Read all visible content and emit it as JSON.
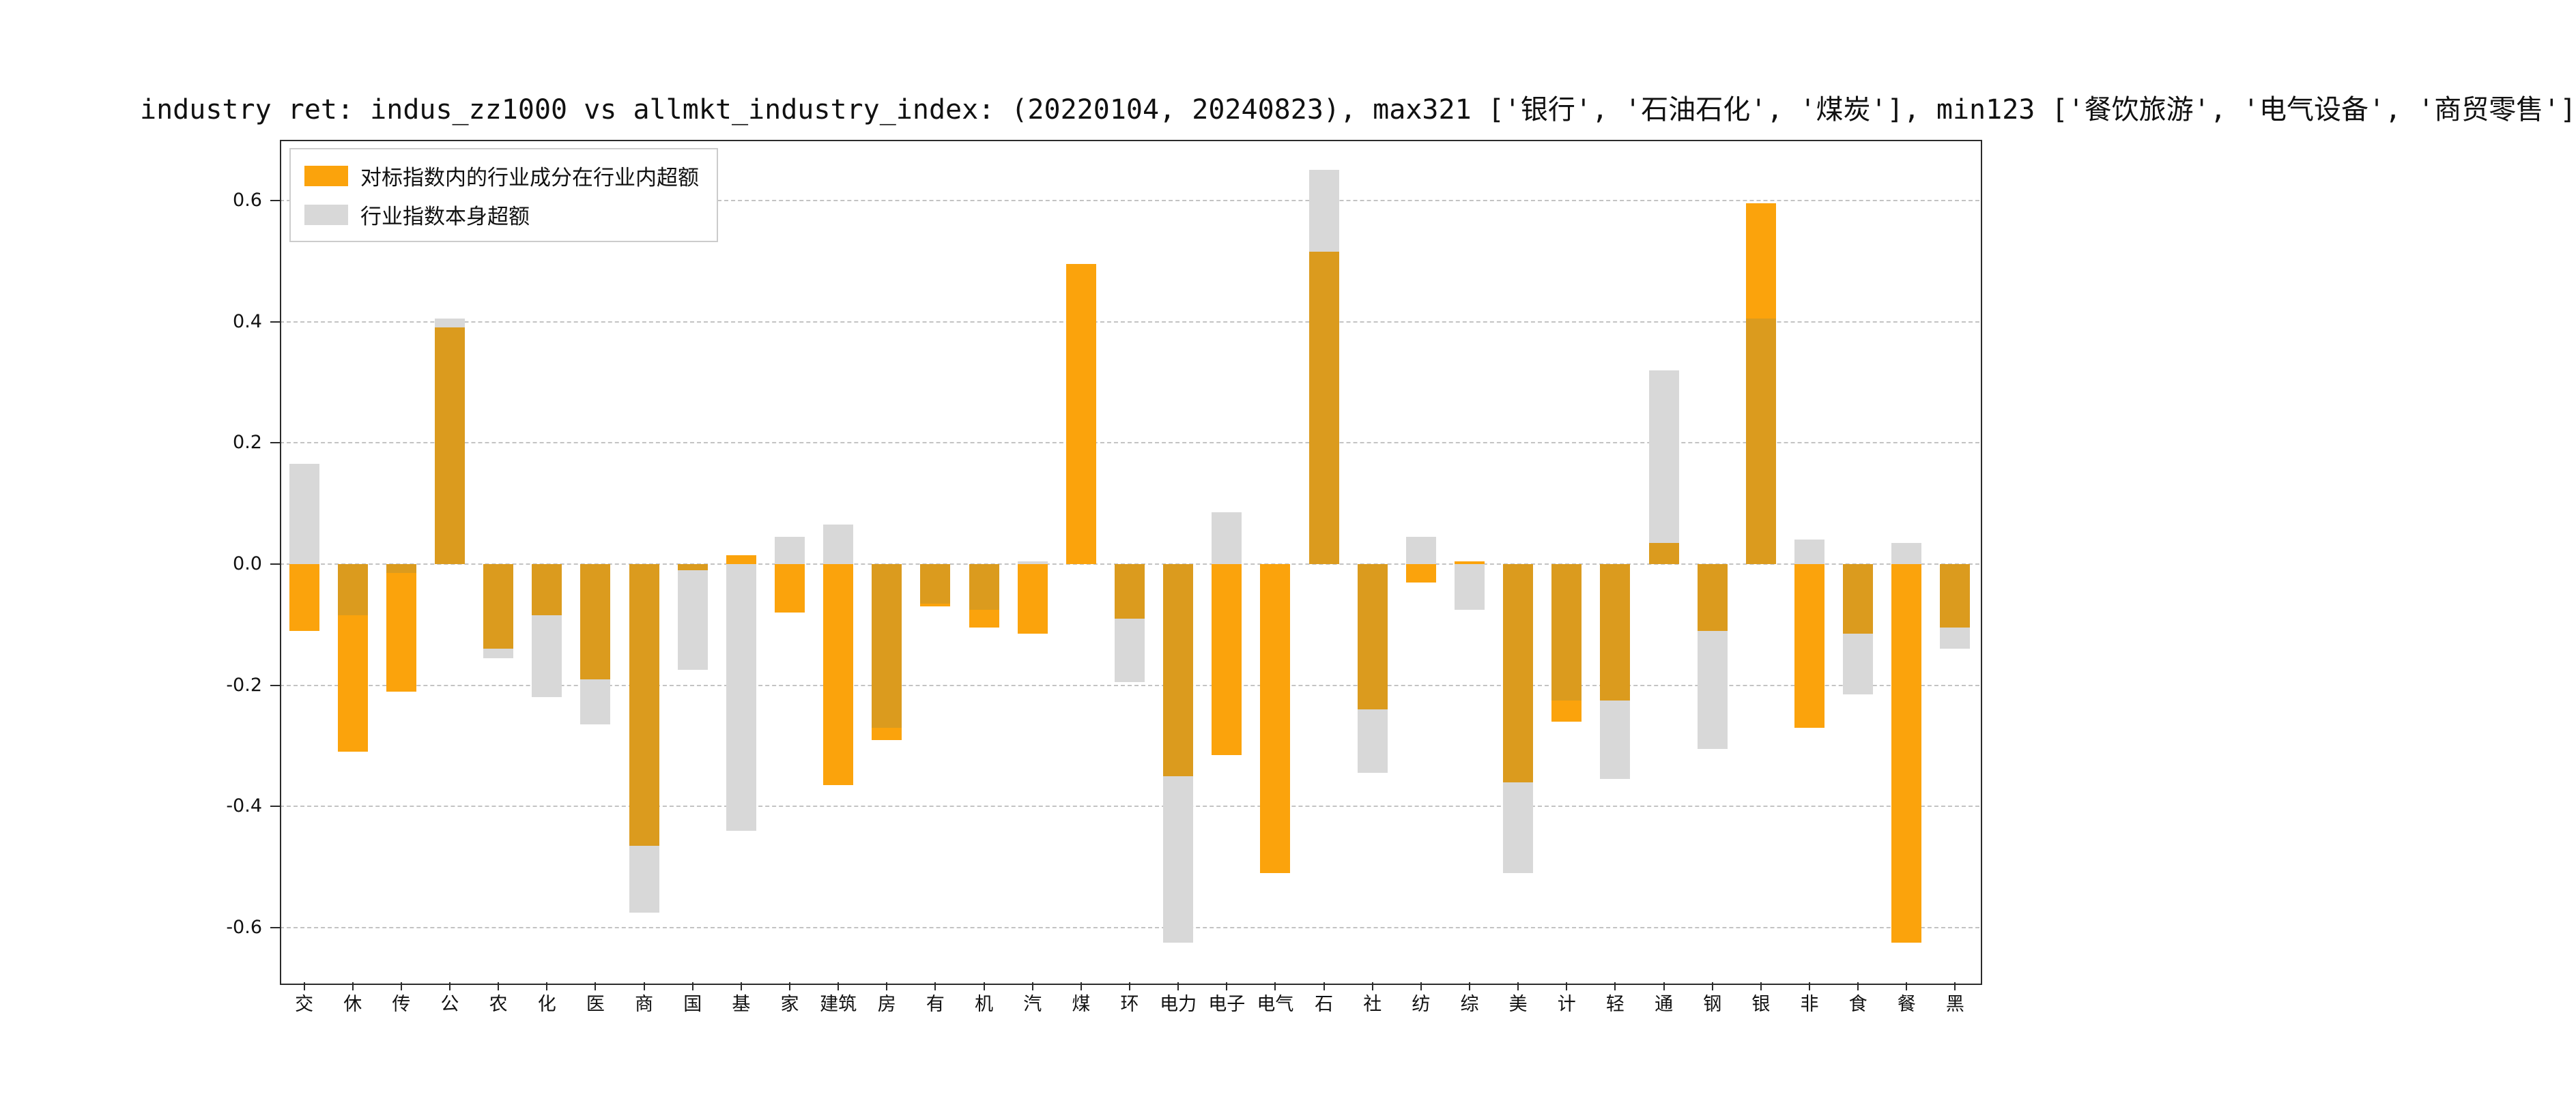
{
  "title": "industry ret: indus_zz1000 vs allmkt_industry_index: (20220104, 20240823), max321 ['银行', '石油石化', '煤炭'], min123 ['餐饮旅游', '电气设备', '商贸零售']",
  "legend": {
    "items": [
      {
        "label": "对标指数内的行业成分在行业内超额",
        "color": "#FBA30C"
      },
      {
        "label": "行业指数本身超额",
        "color": "#D8D8D8"
      }
    ]
  },
  "colors": {
    "orange": "#FBA30C",
    "gray": "#D8D8D8",
    "overlap": "#DB9B1E",
    "grid": "#c3c3c3",
    "axis": "#2b2b2b"
  },
  "chart_data": {
    "type": "bar",
    "title": "industry ret: indus_zz1000 vs allmkt_industry_index: (20220104, 20240823), max321 ['银行', '石油石化', '煤炭'], min123 ['餐饮旅游', '电气设备', '商贸零售']",
    "categories": [
      "交",
      "休",
      "传",
      "公",
      "农",
      "化",
      "医",
      "商",
      "国",
      "基",
      "家",
      "建筑",
      "房",
      "有",
      "机",
      "汽",
      "煤",
      "环",
      "电力",
      "电子",
      "电气",
      "石",
      "社",
      "纺",
      "综",
      "美",
      "计",
      "轻",
      "通",
      "钢",
      "银",
      "非",
      "食",
      "餐",
      "黑"
    ],
    "series": [
      {
        "name": "对标指数内的行业成分在行业内超额",
        "color": "#FBA30C",
        "values": [
          -0.11,
          -0.31,
          -0.21,
          0.39,
          -0.14,
          -0.085,
          -0.19,
          -0.465,
          -0.01,
          0.015,
          -0.08,
          -0.365,
          -0.29,
          -0.07,
          -0.105,
          -0.115,
          0.495,
          -0.09,
          -0.35,
          -0.315,
          -0.51,
          0.515,
          -0.24,
          -0.03,
          0.005,
          -0.36,
          -0.26,
          -0.225,
          0.035,
          -0.11,
          0.595,
          -0.27,
          -0.115,
          -0.625,
          -0.105
        ]
      },
      {
        "name": "行业指数本身超额",
        "color": "#D8D8D8",
        "values": [
          0.165,
          -0.085,
          -0.015,
          0.405,
          -0.155,
          -0.22,
          -0.265,
          -0.575,
          -0.175,
          -0.44,
          0.045,
          0.065,
          -0.27,
          -0.065,
          -0.075,
          0.005,
          0.0,
          -0.195,
          -0.625,
          0.085,
          0.0,
          0.65,
          -0.345,
          0.045,
          -0.075,
          -0.51,
          -0.225,
          -0.355,
          0.32,
          -0.305,
          0.405,
          0.04,
          -0.215,
          0.035,
          -0.14
        ]
      }
    ],
    "xlabel": "",
    "ylabel": "",
    "ylim": [
      -0.69,
      0.7
    ],
    "yticks": [
      -0.6,
      -0.4,
      -0.2,
      0.0,
      0.2,
      0.4,
      0.6
    ],
    "grid": "dashed-horizontal",
    "legend_position": "upper-left"
  }
}
